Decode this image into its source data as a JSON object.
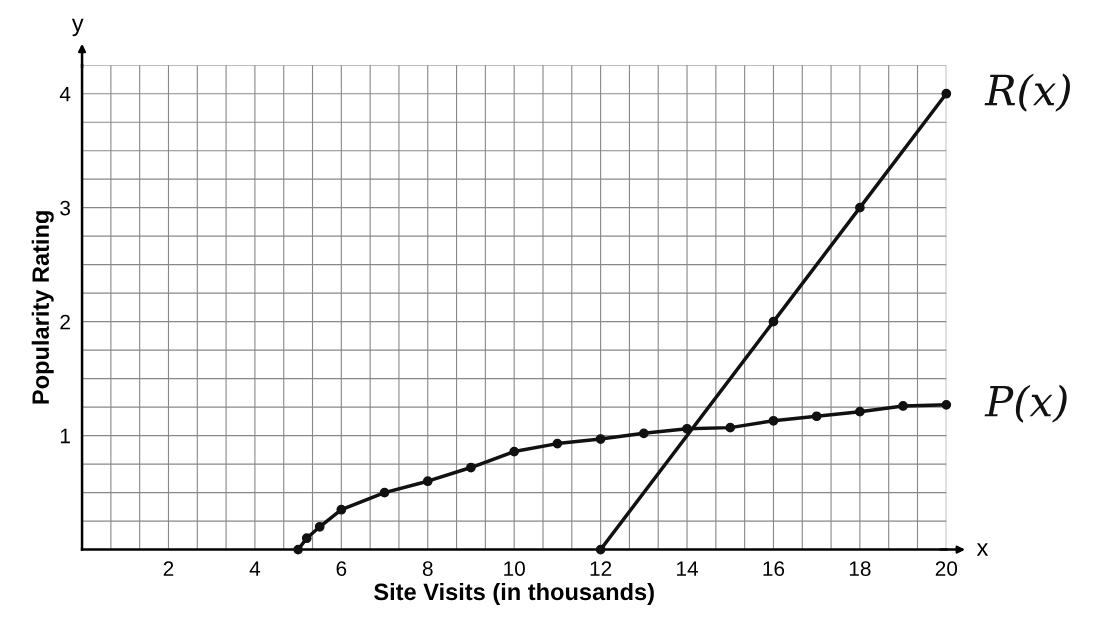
{
  "chart_data": {
    "type": "line",
    "xlabel": "Site Visits (in thousands)",
    "ylabel": "Popularity Rating",
    "annotations": [
      "x",
      "y"
    ],
    "xlim": [
      0,
      20
    ],
    "ylim": [
      0,
      4.25
    ],
    "xticks": [
      {
        "value": 0,
        "label": null
      },
      {
        "value": 0.667,
        "label": null
      },
      {
        "value": 1.333,
        "label": null
      },
      2,
      {
        "value": 2.667,
        "label": null
      },
      {
        "value": 3.333,
        "label": null
      },
      4,
      {
        "value": 4.667,
        "label": null
      },
      {
        "value": 5.333,
        "label": null
      },
      6,
      {
        "value": 6.667,
        "label": null
      },
      {
        "value": 7.333,
        "label": null
      },
      8,
      {
        "value": 8.667,
        "label": null
      },
      {
        "value": 9.333,
        "label": null
      },
      10,
      {
        "value": 10.667,
        "label": null
      },
      {
        "value": 11.333,
        "label": null
      },
      12,
      {
        "value": 12.667,
        "label": null
      },
      {
        "value": 13.333,
        "label": null
      },
      14,
      {
        "value": 14.667,
        "label": null
      },
      {
        "value": 15.333,
        "label": null
      },
      16,
      {
        "value": 16.667,
        "label": null
      },
      {
        "value": 17.333,
        "label": null
      },
      18,
      {
        "value": 18.667,
        "label": null
      },
      {
        "value": 19.333,
        "label": null
      },
      20
    ],
    "yticks": [
      {
        "value": 0,
        "label": null
      },
      {
        "value": 0.25,
        "label": null
      },
      {
        "value": 0.5,
        "label": null
      },
      {
        "value": 0.75,
        "label": null
      },
      1,
      {
        "value": 1.25,
        "label": null
      },
      {
        "value": 1.5,
        "label": null
      },
      {
        "value": 1.75,
        "label": null
      },
      2,
      {
        "value": 2.25,
        "label": null
      },
      {
        "value": 2.5,
        "label": null
      },
      {
        "value": 2.75,
        "label": null
      },
      3,
      {
        "value": 3.25,
        "label": null
      },
      {
        "value": 3.5,
        "label": null
      },
      {
        "value": 3.75,
        "label": null
      },
      4,
      {
        "value": 4.25,
        "label": null
      }
    ],
    "grid": true,
    "marker": "circle",
    "line_style": "solid",
    "series": [
      {
        "name": "R(x)",
        "color": "#111111",
        "x": [
          12,
          16,
          18,
          20
        ],
        "values": [
          0,
          2,
          3,
          4
        ]
      },
      {
        "name": "P(x)",
        "color": "#111111",
        "x": [
          5,
          5.2,
          5.5,
          6,
          7,
          8,
          9,
          10,
          11,
          12,
          13,
          14,
          15,
          16,
          17,
          18,
          19,
          20
        ],
        "values": [
          0,
          0.1,
          0.2,
          0.35,
          0.5,
          0.6,
          0.72,
          0.86,
          0.93,
          0.97,
          1.02,
          1.06,
          1.07,
          1.13,
          1.17,
          1.21,
          1.26,
          1.27
        ]
      }
    ]
  }
}
